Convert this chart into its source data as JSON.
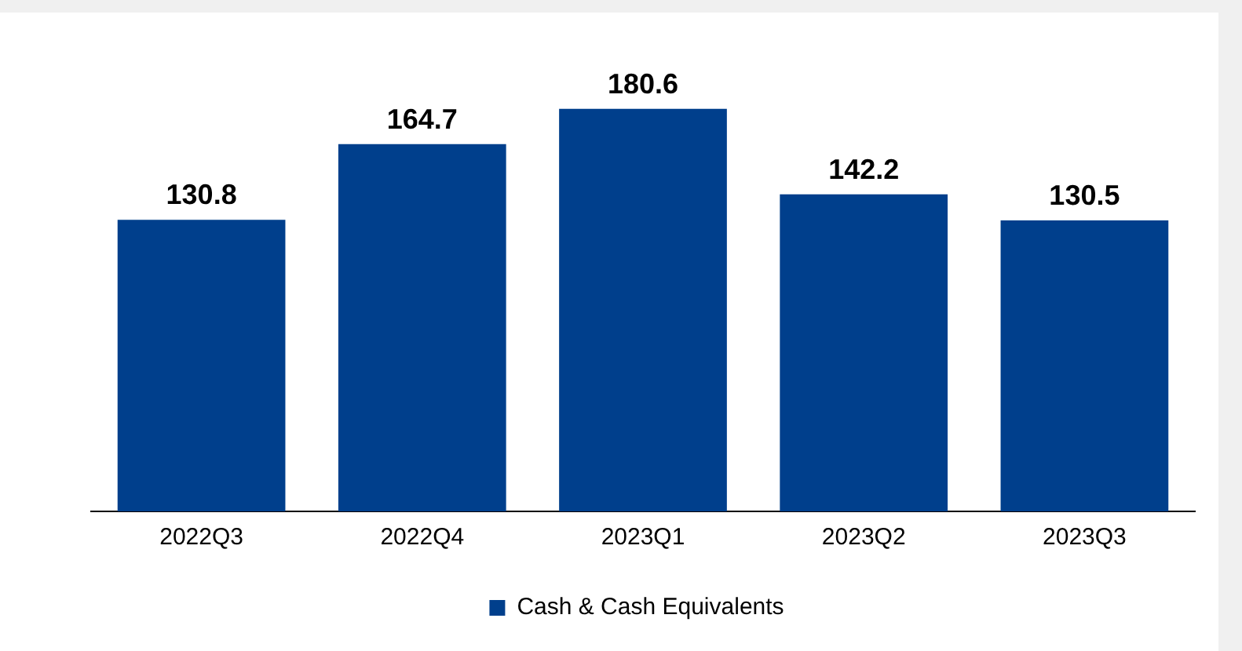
{
  "chart_data": {
    "type": "bar",
    "categories": [
      "2022Q3",
      "2022Q4",
      "2023Q1",
      "2023Q2",
      "2023Q3"
    ],
    "series": [
      {
        "name": "Cash & Cash Equivalents",
        "color": "#003f8c",
        "values": [
          130.8,
          164.7,
          180.6,
          142.2,
          130.5
        ]
      }
    ],
    "data_labels": true,
    "legend": "bottom",
    "grid": false,
    "relative": false
  }
}
